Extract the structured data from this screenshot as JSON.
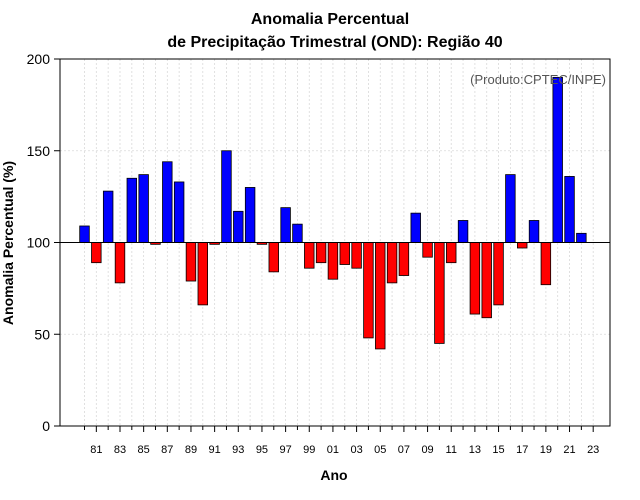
{
  "chart_data": {
    "type": "bar",
    "title_line1": "Anomalia Percentual",
    "title_line2": "de Precipitação Trimestral (OND): Região 40",
    "xlabel": "Ano",
    "ylabel": "Anomalia Percentual (%)",
    "annotation": "(Produto:CPTEC/INPE)",
    "baseline": 100,
    "ylim": [
      0,
      200
    ],
    "yticks": [
      "0",
      "50",
      "100",
      "150",
      "200"
    ],
    "xtick_labels": [
      "81",
      "83",
      "85",
      "87",
      "89",
      "91",
      "93",
      "95",
      "97",
      "99",
      "01",
      "03",
      "05",
      "07",
      "09",
      "11",
      "13",
      "15",
      "17",
      "19",
      "21",
      "23"
    ],
    "categories": [
      "80",
      "81",
      "82",
      "83",
      "84",
      "85",
      "86",
      "87",
      "88",
      "89",
      "90",
      "91",
      "92",
      "93",
      "94",
      "95",
      "96",
      "97",
      "98",
      "99",
      "00",
      "01",
      "02",
      "03",
      "04",
      "05",
      "06",
      "07",
      "08",
      "09",
      "10",
      "11",
      "12",
      "13",
      "14",
      "15",
      "16",
      "17",
      "18",
      "19",
      "20",
      "21",
      "22",
      "23"
    ],
    "values": [
      109,
      89,
      128,
      78,
      135,
      137,
      99,
      144,
      133,
      79,
      66,
      99,
      150,
      117,
      130,
      99,
      84,
      119,
      110,
      86,
      89,
      80,
      88,
      86,
      48,
      42,
      78,
      82,
      116,
      92,
      45,
      89,
      112,
      61,
      59,
      66,
      137,
      97,
      112,
      77,
      190,
      136,
      105,
      null
    ],
    "colors": {
      "above": "#0000ff",
      "below": "#ff0000",
      "grid": "#d9d9d9",
      "axis": "#000000"
    }
  }
}
